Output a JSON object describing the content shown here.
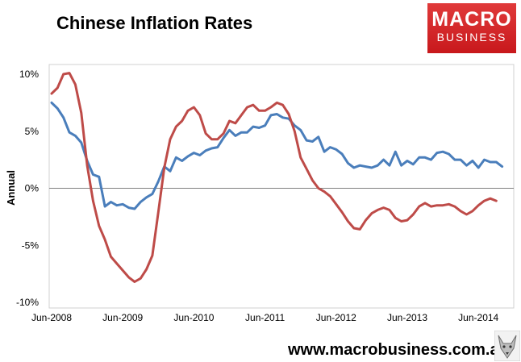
{
  "header": {
    "title": "Chinese Inflation Rates"
  },
  "logo": {
    "line1": "MACRO",
    "line2": "BUSINESS",
    "color": "#d42a2a"
  },
  "footer": {
    "url": "www.macrobusiness.com.au"
  },
  "chart_data": {
    "type": "line",
    "title": "Chinese Inflation Rates",
    "xlabel": "",
    "ylabel": "Annual",
    "ylim": [
      -10,
      10
    ],
    "y_ticks": [
      "10%",
      "5%",
      "0%",
      "-5%",
      "-10%"
    ],
    "y_tick_values": [
      10,
      5,
      0,
      -5,
      -10
    ],
    "x_ticks": [
      "Jun-2008",
      "Jun-2009",
      "Jun-2010",
      "Jun-2011",
      "Jun-2012",
      "Jun-2013",
      "Jun-2014"
    ],
    "x_start": "Jun-2008",
    "x_end": "Jul-2014",
    "grid": false,
    "zero_line": true,
    "legend": "none",
    "series": [
      {
        "color": "#4a7ebb",
        "values": [
          7.5,
          7.0,
          6.2,
          4.9,
          4.6,
          4.0,
          2.4,
          1.2,
          1.0,
          -1.6,
          -1.2,
          -1.5,
          -1.4,
          -1.7,
          -1.8,
          -1.2,
          -0.8,
          -0.5,
          0.6,
          1.9,
          1.5,
          2.7,
          2.4,
          2.8,
          3.1,
          2.9,
          3.3,
          3.5,
          3.6,
          4.4,
          5.1,
          4.6,
          4.9,
          4.9,
          5.4,
          5.3,
          5.5,
          6.4,
          6.5,
          6.2,
          6.1,
          5.5,
          5.1,
          4.2,
          4.1,
          4.5,
          3.2,
          3.6,
          3.4,
          3.0,
          2.2,
          1.8,
          2.0,
          1.9,
          1.8,
          2.0,
          2.5,
          2.0,
          3.2,
          2.0,
          2.4,
          2.1,
          2.7,
          2.7,
          2.5,
          3.1,
          3.2,
          3.0,
          2.5,
          2.5,
          2.0,
          2.4,
          1.8,
          2.5,
          2.3,
          2.3,
          1.9
        ]
      },
      {
        "color": "#be4b48",
        "values": [
          8.3,
          8.8,
          10.0,
          10.1,
          9.1,
          6.6,
          2.0,
          -1.1,
          -3.3,
          -4.5,
          -6.0,
          -6.6,
          -7.2,
          -7.8,
          -8.2,
          -7.9,
          -7.1,
          -5.9,
          -2.1,
          1.8,
          4.3,
          5.4,
          5.9,
          6.8,
          7.1,
          6.4,
          4.8,
          4.3,
          4.3,
          4.8,
          5.9,
          5.7,
          6.4,
          7.1,
          7.3,
          6.8,
          6.8,
          7.1,
          7.5,
          7.3,
          6.5,
          5.0,
          2.7,
          1.7,
          0.7,
          0.0,
          -0.3,
          -0.7,
          -1.4,
          -2.1,
          -2.9,
          -3.5,
          -3.6,
          -2.8,
          -2.2,
          -1.9,
          -1.7,
          -1.9,
          -2.6,
          -2.9,
          -2.8,
          -2.3,
          -1.6,
          -1.3,
          -1.6,
          -1.5,
          -1.5,
          -1.4,
          -1.6,
          -2.0,
          -2.3,
          -2.0,
          -1.5,
          -1.1,
          -0.9,
          -1.1
        ]
      }
    ]
  }
}
